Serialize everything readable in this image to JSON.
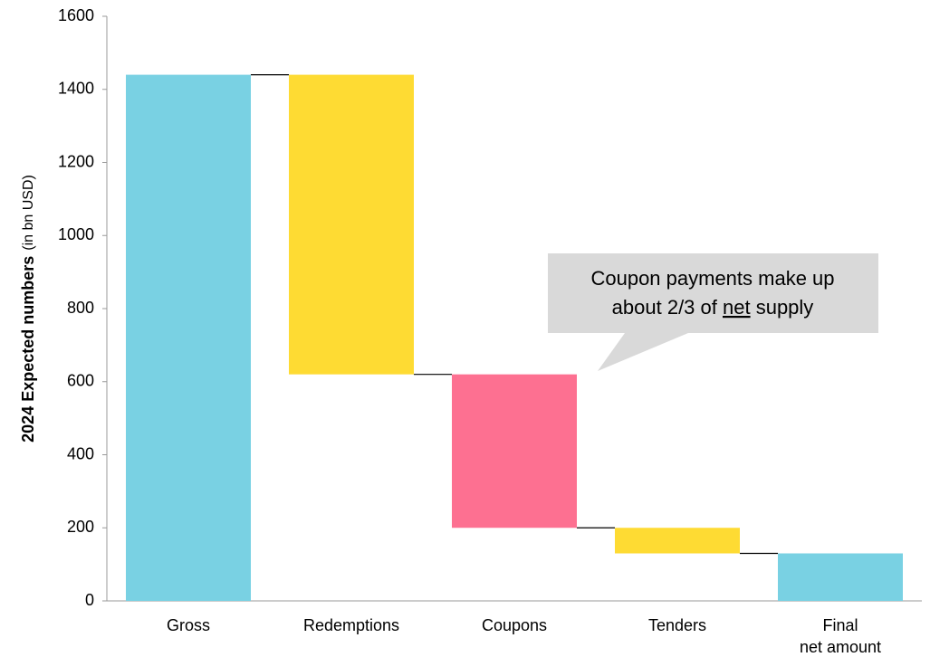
{
  "chart_data": {
    "type": "waterfall",
    "y_label": "2024 Expected numbers",
    "y_label_unit": "(in bn USD)",
    "categories": [
      "Gross",
      "Redemptions",
      "Coupons",
      "Tenders",
      "Final\nnet amount"
    ],
    "values": [
      1440,
      -820,
      -420,
      -70,
      130
    ],
    "measure": [
      "absolute",
      "relative",
      "relative",
      "relative",
      "absolute"
    ],
    "colors": [
      "#79d1e3",
      "#fedb33",
      "#fd7091",
      "#fedb33",
      "#79d1e3"
    ],
    "ylim": [
      0,
      1600
    ],
    "yticks": [
      0,
      200,
      400,
      600,
      800,
      1000,
      1200,
      1400,
      1600
    ],
    "annotation_lines": [
      "Coupon payments make up",
      "about 2/3 of net supply"
    ],
    "annotation_underline": "net"
  }
}
